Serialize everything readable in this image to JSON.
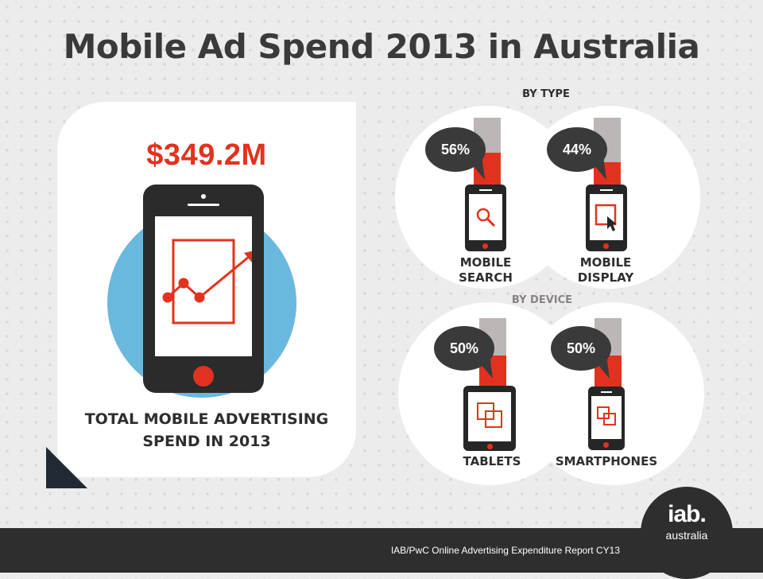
{
  "title": "Mobile Ad Spend 2013 in Australia",
  "total": {
    "amount": "$349.2M",
    "caption_line1": "TOTAL MOBILE ADVERTISING",
    "caption_line2": "SPEND IN 2013"
  },
  "by_type": {
    "label": "BY TYPE",
    "items": [
      {
        "percent": "56%",
        "value": 56,
        "label_line1": "MOBILE",
        "label_line2": "SEARCH",
        "icon": "magnifier-icon"
      },
      {
        "percent": "44%",
        "value": 44,
        "label_line1": "MOBILE",
        "label_line2": "DISPLAY",
        "icon": "cursor-icon"
      }
    ]
  },
  "by_device": {
    "label": "BY DEVICE",
    "items": [
      {
        "percent": "50%",
        "value": 50,
        "label": "TABLETS",
        "icon": "overlapping-squares-icon"
      },
      {
        "percent": "50%",
        "value": 50,
        "label": "SMARTPHONES",
        "icon": "overlapping-squares-icon"
      }
    ]
  },
  "colors": {
    "accent": "#e2321f",
    "dark": "#2e2e2e",
    "blue": "#6bb8de",
    "gauge_empty": "#bcb6b6",
    "by_type_label": "#2e2e2e",
    "by_device_label": "#8a8282"
  },
  "footer": {
    "source": "IAB/PwC Online Advertising Expenditure Report CY13",
    "logo_main": "iab.",
    "logo_sub": "australia"
  }
}
